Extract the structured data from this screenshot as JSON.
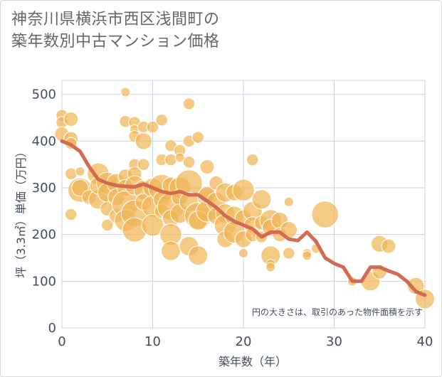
{
  "title_line1": "神奈川県横浜市西区浅間町の",
  "title_line2": "築年数別中古マンション価格",
  "colors": {
    "bubble": "#f0b556",
    "bubble_stroke": "#ffffff",
    "line": "#d36a52",
    "grid": "#c9d3e2",
    "axis_text": "#444d5c",
    "title_text": "#666666"
  },
  "chart_data": {
    "type": "scatter",
    "xlabel": "築年数（年）",
    "ylabel": "坪（3.3㎡）単価（万円）",
    "note": "円の大きさは、取引のあった物件面積を示す",
    "xlim": [
      0,
      40
    ],
    "ylim": [
      0,
      530
    ],
    "xticks": [
      "0",
      "10",
      "20",
      "30",
      "40"
    ],
    "yticks": [
      "0",
      "100",
      "200",
      "300",
      "400",
      "500"
    ],
    "grid": true,
    "average_line": {
      "x": [
        0,
        1,
        2,
        3,
        4,
        5,
        6,
        7,
        8,
        9,
        10,
        11,
        12,
        13,
        14,
        15,
        16,
        17,
        18,
        19,
        20,
        21,
        22,
        23,
        24,
        25,
        26,
        27,
        28,
        29,
        30,
        31,
        32,
        33,
        34,
        35,
        36,
        37,
        38,
        39,
        40
      ],
      "y": [
        400,
        392,
        378,
        345,
        318,
        310,
        305,
        303,
        302,
        308,
        300,
        292,
        288,
        292,
        285,
        285,
        272,
        258,
        240,
        228,
        220,
        212,
        195,
        205,
        205,
        190,
        187,
        205,
        185,
        150,
        138,
        130,
        100,
        100,
        130,
        130,
        122,
        115,
        100,
        78,
        70
      ]
    },
    "points": [
      {
        "x": 0,
        "y": 455,
        "s": 3
      },
      {
        "x": 0,
        "y": 440,
        "s": 3
      },
      {
        "x": 0,
        "y": 415,
        "s": 4
      },
      {
        "x": 1,
        "y": 447,
        "s": 4
      },
      {
        "x": 1,
        "y": 405,
        "s": 4
      },
      {
        "x": 1,
        "y": 395,
        "s": 3
      },
      {
        "x": 1,
        "y": 330,
        "s": 3
      },
      {
        "x": 1,
        "y": 243,
        "s": 3
      },
      {
        "x": 2,
        "y": 335,
        "s": 2
      },
      {
        "x": 2,
        "y": 295,
        "s": 8
      },
      {
        "x": 2,
        "y": 300,
        "s": 5
      },
      {
        "x": 3,
        "y": 280,
        "s": 4
      },
      {
        "x": 4,
        "y": 330,
        "s": 7
      },
      {
        "x": 4,
        "y": 275,
        "s": 6
      },
      {
        "x": 4,
        "y": 305,
        "s": 5
      },
      {
        "x": 5,
        "y": 310,
        "s": 7
      },
      {
        "x": 5,
        "y": 290,
        "s": 6
      },
      {
        "x": 5,
        "y": 255,
        "s": 4
      },
      {
        "x": 5,
        "y": 220,
        "s": 3
      },
      {
        "x": 6,
        "y": 310,
        "s": 6
      },
      {
        "x": 6,
        "y": 280,
        "s": 5
      },
      {
        "x": 6,
        "y": 240,
        "s": 4
      },
      {
        "x": 7,
        "y": 505,
        "s": 2
      },
      {
        "x": 7,
        "y": 442,
        "s": 3
      },
      {
        "x": 7,
        "y": 325,
        "s": 4
      },
      {
        "x": 7,
        "y": 300,
        "s": 5
      },
      {
        "x": 7,
        "y": 265,
        "s": 9
      },
      {
        "x": 7,
        "y": 230,
        "s": 7
      },
      {
        "x": 8,
        "y": 440,
        "s": 3
      },
      {
        "x": 8,
        "y": 425,
        "s": 2
      },
      {
        "x": 8,
        "y": 410,
        "s": 3
      },
      {
        "x": 8,
        "y": 350,
        "s": 3
      },
      {
        "x": 8,
        "y": 330,
        "s": 4
      },
      {
        "x": 8,
        "y": 305,
        "s": 6
      },
      {
        "x": 8,
        "y": 245,
        "s": 9
      },
      {
        "x": 8,
        "y": 210,
        "s": 8
      },
      {
        "x": 9,
        "y": 430,
        "s": 3
      },
      {
        "x": 9,
        "y": 400,
        "s": 5
      },
      {
        "x": 9,
        "y": 350,
        "s": 3
      },
      {
        "x": 9,
        "y": 295,
        "s": 6
      },
      {
        "x": 9,
        "y": 270,
        "s": 5
      },
      {
        "x": 10,
        "y": 430,
        "s": 3
      },
      {
        "x": 10,
        "y": 300,
        "s": 6
      },
      {
        "x": 10,
        "y": 260,
        "s": 7
      },
      {
        "x": 10,
        "y": 220,
        "s": 7
      },
      {
        "x": 11,
        "y": 445,
        "s": 3
      },
      {
        "x": 11,
        "y": 360,
        "s": 3
      },
      {
        "x": 11,
        "y": 300,
        "s": 9
      },
      {
        "x": 11,
        "y": 275,
        "s": 5
      },
      {
        "x": 11,
        "y": 250,
        "s": 4
      },
      {
        "x": 12,
        "y": 390,
        "s": 3
      },
      {
        "x": 12,
        "y": 360,
        "s": 3
      },
      {
        "x": 12,
        "y": 305,
        "s": 5
      },
      {
        "x": 12,
        "y": 260,
        "s": 9
      },
      {
        "x": 12,
        "y": 235,
        "s": 5
      },
      {
        "x": 12,
        "y": 200,
        "s": 7
      },
      {
        "x": 12,
        "y": 165,
        "s": 6
      },
      {
        "x": 13,
        "y": 380,
        "s": 3
      },
      {
        "x": 13,
        "y": 365,
        "s": 2
      },
      {
        "x": 13,
        "y": 300,
        "s": 7
      },
      {
        "x": 13,
        "y": 280,
        "s": 5
      },
      {
        "x": 13,
        "y": 245,
        "s": 6
      },
      {
        "x": 14,
        "y": 480,
        "s": 3
      },
      {
        "x": 14,
        "y": 400,
        "s": 3
      },
      {
        "x": 14,
        "y": 355,
        "s": 3
      },
      {
        "x": 14,
        "y": 310,
        "s": 9
      },
      {
        "x": 14,
        "y": 270,
        "s": 6
      },
      {
        "x": 14,
        "y": 175,
        "s": 6
      },
      {
        "x": 15,
        "y": 408,
        "s": 3
      },
      {
        "x": 15,
        "y": 240,
        "s": 9
      },
      {
        "x": 15,
        "y": 230,
        "s": 6
      },
      {
        "x": 15,
        "y": 155,
        "s": 6
      },
      {
        "x": 16,
        "y": 345,
        "s": 4
      },
      {
        "x": 16,
        "y": 280,
        "s": 6
      },
      {
        "x": 16,
        "y": 250,
        "s": 7
      },
      {
        "x": 16,
        "y": 285,
        "s": 5
      },
      {
        "x": 17,
        "y": 310,
        "s": 4
      },
      {
        "x": 17,
        "y": 270,
        "s": 6
      },
      {
        "x": 17,
        "y": 240,
        "s": 5
      },
      {
        "x": 18,
        "y": 290,
        "s": 6
      },
      {
        "x": 18,
        "y": 245,
        "s": 6
      },
      {
        "x": 18,
        "y": 220,
        "s": 7
      },
      {
        "x": 18,
        "y": 190,
        "s": 5
      },
      {
        "x": 19,
        "y": 290,
        "s": 5
      },
      {
        "x": 19,
        "y": 240,
        "s": 6
      },
      {
        "x": 19,
        "y": 205,
        "s": 7
      },
      {
        "x": 20,
        "y": 295,
        "s": 7
      },
      {
        "x": 20,
        "y": 235,
        "s": 5
      },
      {
        "x": 20,
        "y": 190,
        "s": 5
      },
      {
        "x": 20,
        "y": 160,
        "s": 2
      },
      {
        "x": 21,
        "y": 360,
        "s": 3
      },
      {
        "x": 21,
        "y": 250,
        "s": 6
      },
      {
        "x": 21,
        "y": 220,
        "s": 5
      },
      {
        "x": 21,
        "y": 200,
        "s": 4
      },
      {
        "x": 22,
        "y": 275,
        "s": 6
      },
      {
        "x": 22,
        "y": 225,
        "s": 4
      },
      {
        "x": 22,
        "y": 195,
        "s": 3
      },
      {
        "x": 23,
        "y": 230,
        "s": 7
      },
      {
        "x": 23,
        "y": 215,
        "s": 5
      },
      {
        "x": 23,
        "y": 155,
        "s": 6
      },
      {
        "x": 23,
        "y": 137,
        "s": 2
      },
      {
        "x": 23,
        "y": 130,
        "s": 2
      },
      {
        "x": 24,
        "y": 230,
        "s": 5
      },
      {
        "x": 24,
        "y": 200,
        "s": 4
      },
      {
        "x": 25,
        "y": 270,
        "s": 2
      },
      {
        "x": 25,
        "y": 210,
        "s": 5
      },
      {
        "x": 25,
        "y": 160,
        "s": 3
      },
      {
        "x": 27,
        "y": 160,
        "s": 2
      },
      {
        "x": 27,
        "y": 155,
        "s": 2
      },
      {
        "x": 28,
        "y": 170,
        "s": 2
      },
      {
        "x": 29,
        "y": 243,
        "s": 9
      },
      {
        "x": 32,
        "y": 100,
        "s": 2
      },
      {
        "x": 34,
        "y": 100,
        "s": 6
      },
      {
        "x": 35,
        "y": 180,
        "s": 5
      },
      {
        "x": 35,
        "y": 120,
        "s": 4
      },
      {
        "x": 36,
        "y": 175,
        "s": 4
      },
      {
        "x": 39,
        "y": 90,
        "s": 5
      },
      {
        "x": 40,
        "y": 62,
        "s": 6
      }
    ]
  }
}
